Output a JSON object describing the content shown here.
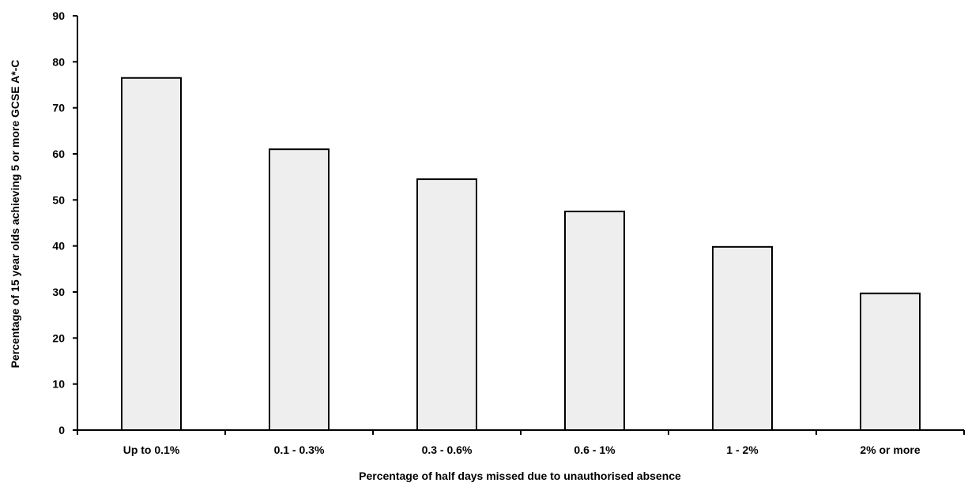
{
  "chart_data": {
    "type": "bar",
    "categories": [
      "Up to 0.1%",
      "0.1 - 0.3%",
      "0.3 - 0.6%",
      "0.6 - 1%",
      "1 - 2%",
      "2% or more"
    ],
    "values": [
      76.5,
      61,
      54.5,
      47.5,
      39.8,
      29.7
    ],
    "xlabel": "Percentage of half days missed due to unauthorised absence",
    "ylabel": "Percentage of 15 year olds achieving 5 or more  GCSE A*-C",
    "ylim": [
      0,
      90
    ],
    "yticks": [
      0,
      10,
      20,
      30,
      40,
      50,
      60,
      70,
      80,
      90
    ],
    "grid": false,
    "colors": {
      "bar_fill": "#eeeeee",
      "bar_stroke": "#000000",
      "axis": "#000000"
    }
  }
}
